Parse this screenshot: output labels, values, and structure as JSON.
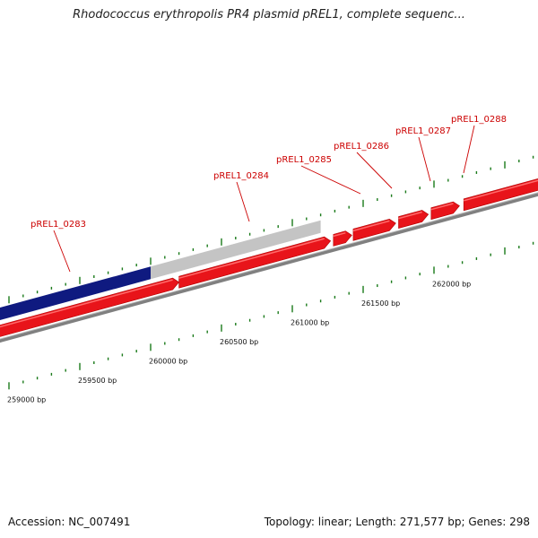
{
  "header": {
    "title": "Rhodococcus erythropolis PR4 plasmid pREL1, complete sequenc..."
  },
  "footer": {
    "accession": "Accession: NC_007491",
    "summary": "Topology: linear; Length: 271,577 bp; Genes: 298"
  },
  "colors": {
    "gene": "#e8141a",
    "gene_highlight": "#ff6a6a",
    "selected_region": "#0f1a80",
    "unselected_region": "#c4c4c4",
    "baseline": "#808080",
    "tick": "#1a7a1a",
    "label": "#cc0000"
  },
  "genes": [
    {
      "name": "pREL1_0283",
      "start": 259000,
      "end": 260200
    },
    {
      "name": "pREL1_0284",
      "start": 260200,
      "end": 261270
    },
    {
      "name": "pREL1_0285",
      "start": 261290,
      "end": 261420
    },
    {
      "name": "pREL1_0286",
      "start": 261430,
      "end": 261730
    },
    {
      "name": "pREL1_0287",
      "start": 261750,
      "end": 261960
    },
    {
      "name": "pREL1_0288",
      "start": 261980,
      "end": 262180
    },
    {
      "name": "",
      "start": 262210,
      "end": 262600
    }
  ],
  "regions": [
    {
      "kind": "selected",
      "start": 259000,
      "end": 260000
    },
    {
      "kind": "unselected",
      "start": 260000,
      "end": 261200
    }
  ],
  "scale_labels": [
    {
      "bp": 259000,
      "text": "259000 bp"
    },
    {
      "bp": 259500,
      "text": "259500 bp"
    },
    {
      "bp": 260000,
      "text": "260000 bp"
    },
    {
      "bp": 260500,
      "text": "260500 bp"
    },
    {
      "bp": 261000,
      "text": "261000 bp"
    },
    {
      "bp": 261500,
      "text": "261500 bp"
    },
    {
      "bp": 262000,
      "text": "262000 bp"
    }
  ]
}
